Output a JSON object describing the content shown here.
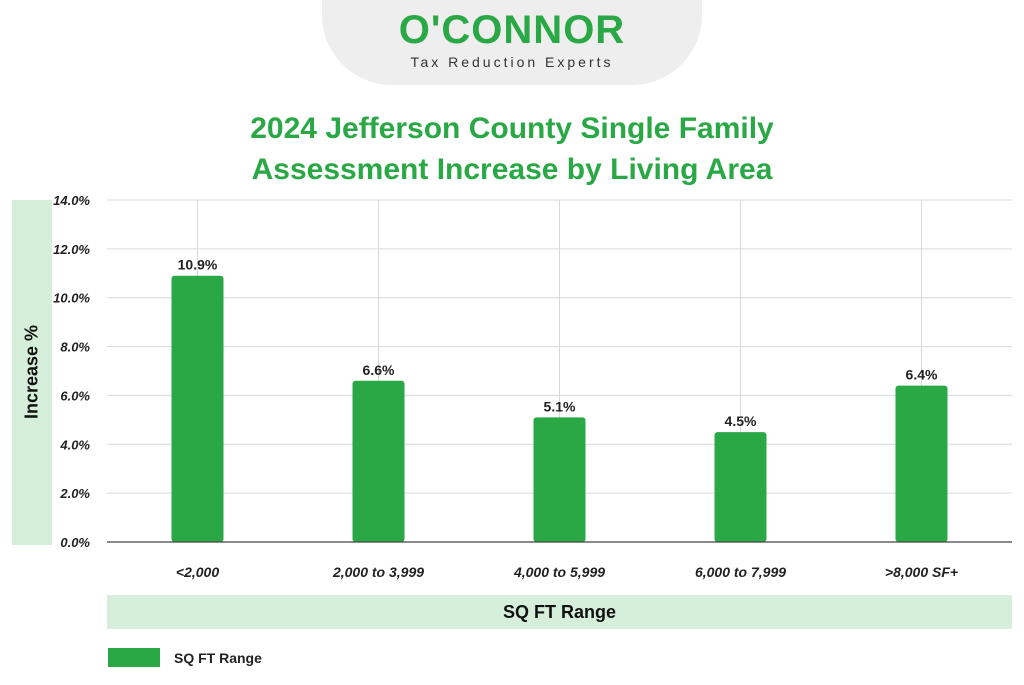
{
  "logo": {
    "brand": "O'CONNOR",
    "tagline": "Tax Reduction Experts"
  },
  "colors": {
    "bar": "#2aa845",
    "band": "#d5efdb",
    "title": "#2aa845",
    "grid": "#d9d9d9"
  },
  "chart_data": {
    "type": "bar",
    "title_line1": "2024 Jefferson County Single Family",
    "title_line2": "Assessment Increase by Living Area",
    "xlabel": "SQ FT Range",
    "ylabel": "Increase %",
    "categories": [
      "<2,000",
      "2,000 to 3,999",
      "4,000 to 5,999",
      "6,000 to 7,999",
      ">8,000 SF+"
    ],
    "series": [
      {
        "name": "SQ FT Range",
        "values": [
          10.9,
          6.6,
          5.1,
          4.5,
          6.4
        ]
      }
    ],
    "value_labels": [
      "10.9%",
      "6.6%",
      "5.1%",
      "4.5%",
      "6.4%"
    ],
    "yticks": [
      "0.0%",
      "2.0%",
      "4.0%",
      "6.0%",
      "8.0%",
      "10.0%",
      "12.0%",
      "14.0%"
    ],
    "ylim": [
      0,
      14
    ],
    "grid": true,
    "legend_position": "bottom-left"
  }
}
